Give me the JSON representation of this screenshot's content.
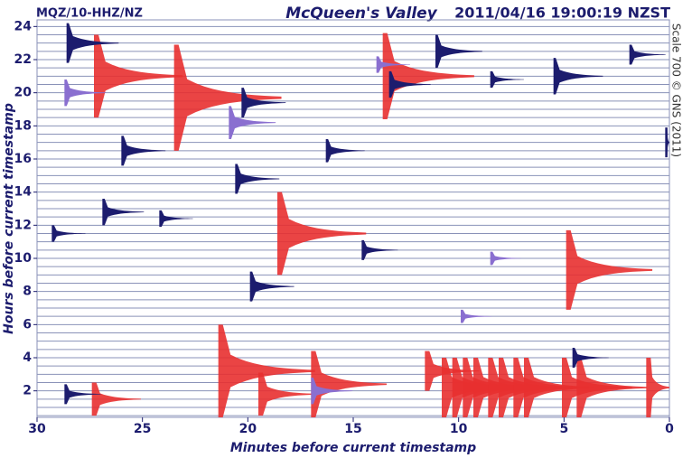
{
  "chart_data": {
    "type": "helicorder",
    "station": "MQZ/10-HHZ/NZ",
    "title": "McQueen's Valley",
    "timestamp": "2011/04/16 19:00:19 NZST",
    "side_note": "Scale 700 © GNS (2011)",
    "x_label": "Minutes before current timestamp",
    "y_label": "Hours before current timestamp",
    "xlim": [
      30,
      0
    ],
    "ylim": [
      0.4,
      24.4
    ],
    "xticks": [
      30,
      25,
      20,
      15,
      10,
      5,
      0
    ],
    "yticks": [
      2,
      4,
      6,
      8,
      10,
      12,
      14,
      16,
      18,
      20,
      22,
      24
    ],
    "trace_color": "#8a92b8",
    "traces": [
      0.5,
      1,
      1.5,
      2,
      2.5,
      3,
      3.5,
      4,
      4.5,
      5,
      5.5,
      6,
      6.5,
      7,
      7.5,
      8,
      8.5,
      9,
      9.5,
      10,
      10.5,
      11,
      11.5,
      12,
      12.5,
      13,
      13.5,
      14,
      14.5,
      15,
      15.5,
      16,
      16.5,
      17,
      17.5,
      18,
      18.5,
      19,
      19.5,
      20,
      20.5,
      21,
      21.5,
      22,
      22.5,
      23,
      23.5,
      24
    ],
    "events": [
      {
        "name": "clipped",
        "color": "#e83030",
        "x": [
          27.3,
          23.5,
          13.6,
          18.6,
          4.9,
          21.4,
          17,
          19.5,
          27.4,
          11.6,
          10.8,
          10.3,
          9.8,
          9.3,
          8.6,
          8.1,
          7.4,
          6.9,
          5.1,
          4.4,
          1.1
        ],
        "values": [
          21,
          19.7,
          21,
          11.5,
          9.3,
          3.2,
          2.4,
          1.8,
          1.5,
          3.2,
          2.2,
          2.2,
          2.2,
          2.2,
          2.2,
          2.2,
          2.2,
          2.2,
          2.2,
          2.2,
          2.2
        ],
        "amplitude": [
          2.5,
          3.2,
          2.6,
          2.5,
          2.4,
          2.8,
          2,
          1.3,
          1,
          1.2,
          1.8,
          1.8,
          1.8,
          1.8,
          1.8,
          1.8,
          1.8,
          1.8,
          1.8,
          1.8,
          1.8
        ]
      },
      {
        "name": "local",
        "color": "#1c1c6e",
        "x": [
          28.6,
          20.3,
          26,
          29.3,
          16.3,
          14.6,
          5.5,
          0.2,
          11.1,
          8.5,
          20.6,
          28.7,
          26.9,
          19.9,
          24.2,
          1.9,
          4.6,
          13.3
        ],
        "values": [
          23,
          19.4,
          16.5,
          11.5,
          16.5,
          10.5,
          21,
          17,
          22.5,
          20.8,
          14.8,
          1.8,
          12.8,
          8.3,
          12.4,
          22.3,
          4,
          20.5
        ],
        "amplitude": [
          1.2,
          0.9,
          0.9,
          0.5,
          0.7,
          0.6,
          1.1,
          0.9,
          1,
          0.5,
          0.9,
          0.6,
          0.8,
          0.9,
          0.5,
          0.6,
          0.6,
          0.8
        ]
      },
      {
        "name": "regional",
        "color": "#8a6fd0",
        "x": [
          28.7,
          20.9,
          17,
          8.5,
          13.9,
          9.9
        ],
        "values": [
          20,
          18.2,
          2,
          10,
          21.7,
          6.5
        ],
        "amplitude": [
          0.8,
          1,
          0.8,
          0.4,
          0.5,
          0.4
        ]
      }
    ]
  }
}
